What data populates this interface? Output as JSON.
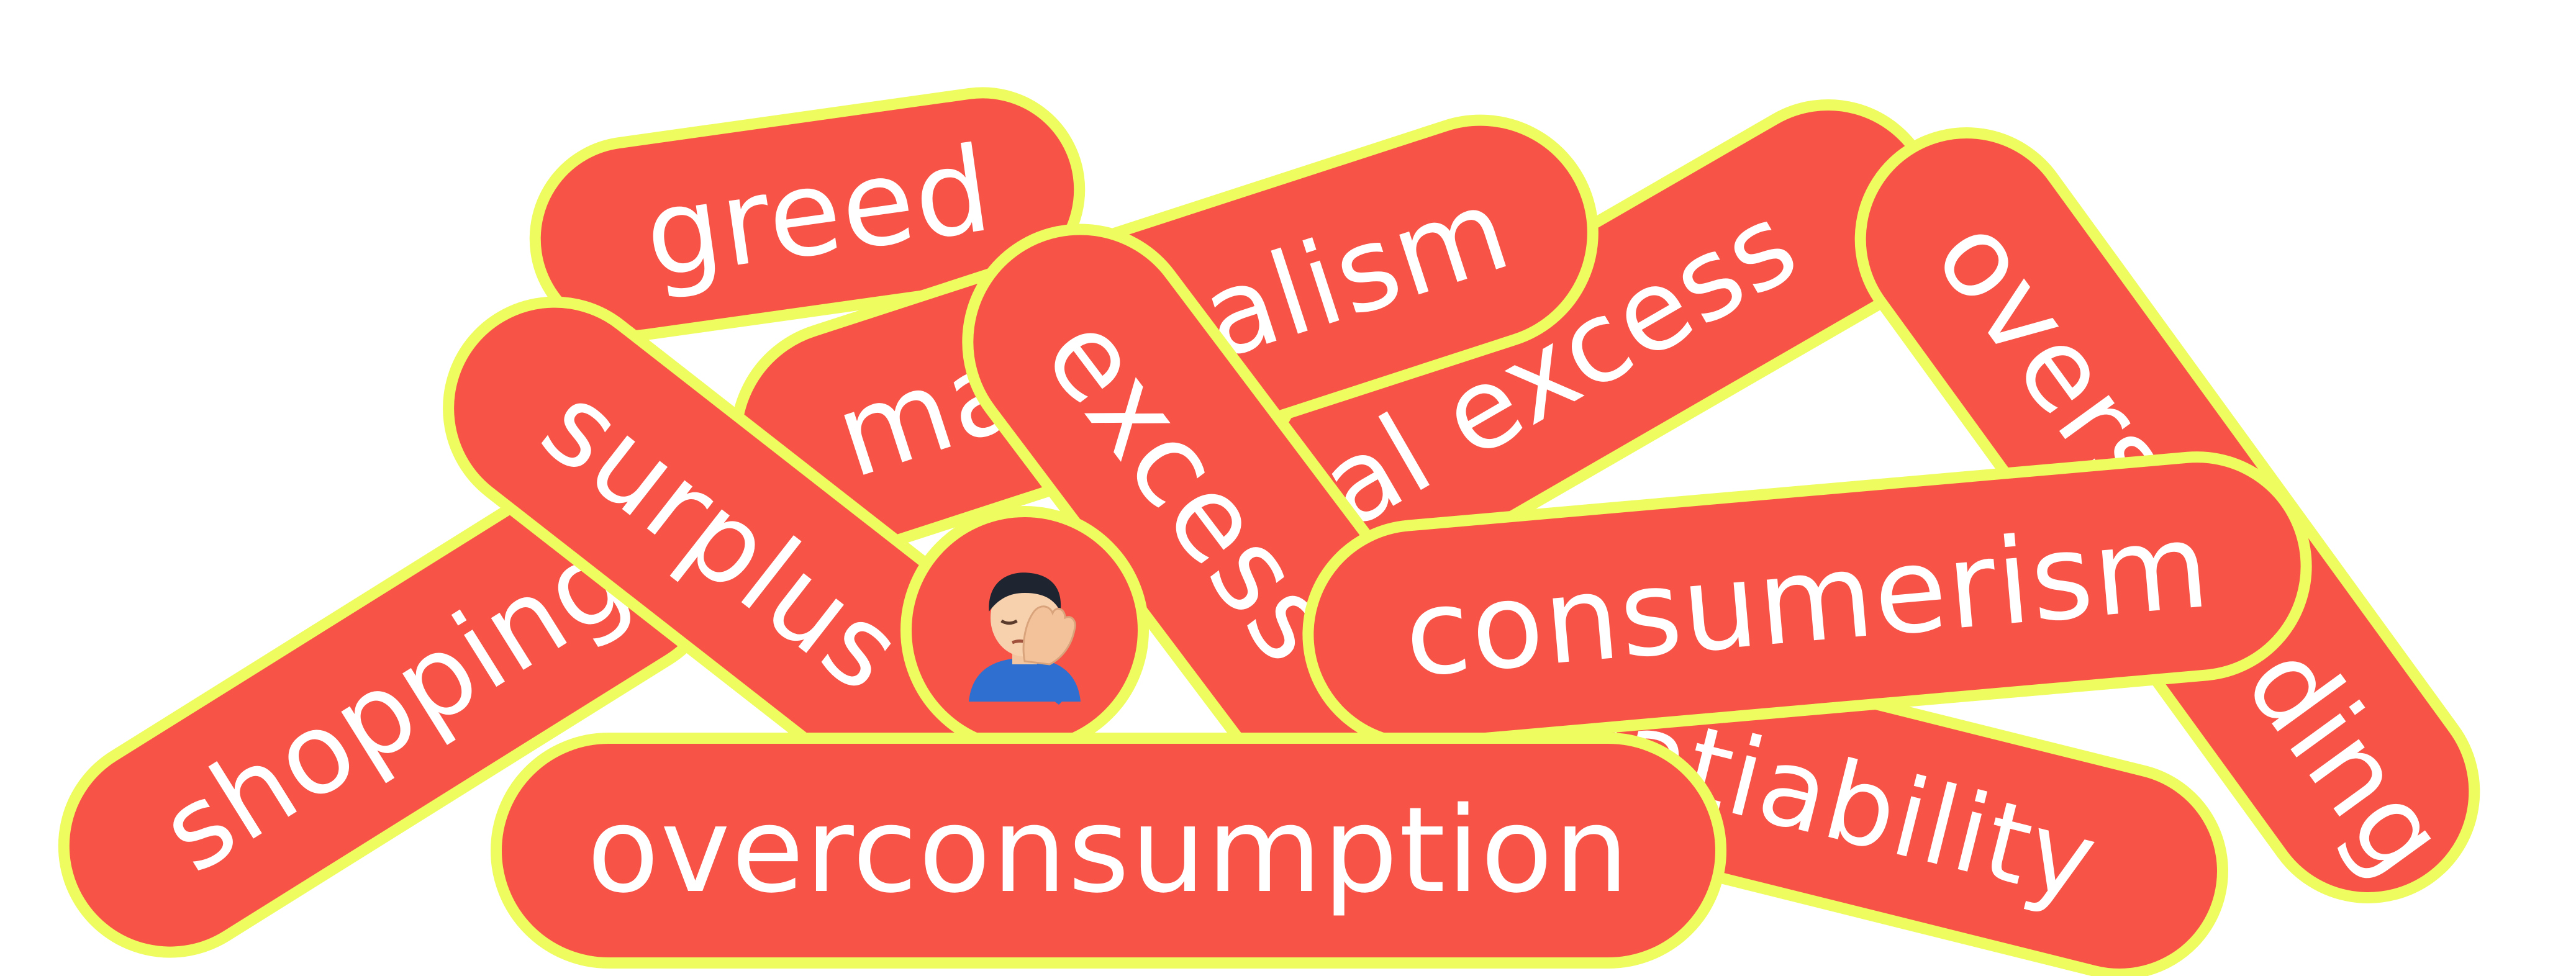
{
  "words": {
    "greed": "greed",
    "materialism": "materialism",
    "material_excess": "material excess",
    "overspending": "overspending",
    "surplus": "surplus",
    "excess": "excess",
    "shopping": "shopping",
    "insatiability": "insatiability",
    "consumerism": "consumerism",
    "overconsumption": "overconsumption"
  },
  "emoji": {
    "icon": "face-palm-man-icon"
  },
  "colors": {
    "pill_fill": "#f85347",
    "pill_outline": "#eefc5f",
    "text": "#ffffff",
    "background": "#ffffff"
  }
}
